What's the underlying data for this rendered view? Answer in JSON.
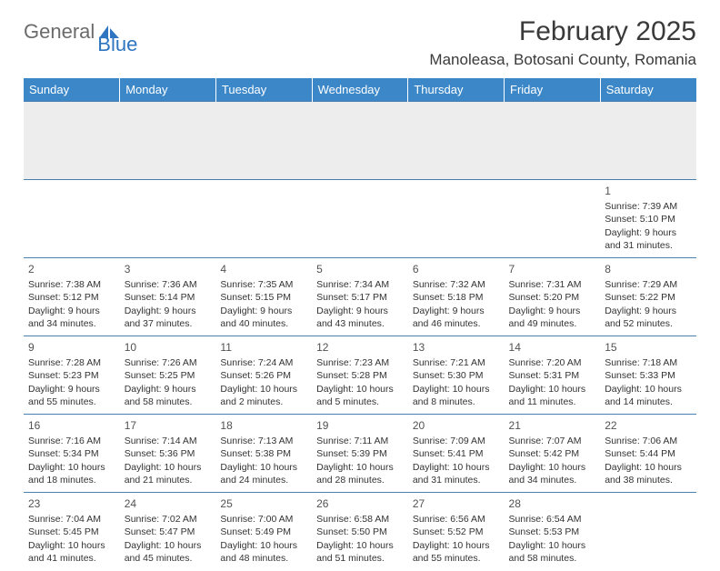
{
  "logo": {
    "part1": "General",
    "part2": "Blue"
  },
  "title": "February 2025",
  "location": "Manoleasa, Botosani County, Romania",
  "style": {
    "header_bg": "#3b87c8",
    "header_text": "#ffffff",
    "border_color": "#4b7fb0",
    "blank_row_bg": "#ededed",
    "page_bg": "#ffffff",
    "title_fontsize": 30,
    "location_fontsize": 17,
    "dayname_fontsize": 13,
    "daynum_fontsize": 12,
    "cell_fontsize": 10.5,
    "logo_gray": "#6b6b6b",
    "logo_blue": "#2f75c1"
  },
  "day_names": [
    "Sunday",
    "Monday",
    "Tuesday",
    "Wednesday",
    "Thursday",
    "Friday",
    "Saturday"
  ],
  "weeks": [
    [
      null,
      null,
      null,
      null,
      null,
      null,
      {
        "n": "1",
        "sr": "7:39 AM",
        "ss": "5:10 PM",
        "dl": "9 hours and 31 minutes."
      }
    ],
    [
      {
        "n": "2",
        "sr": "7:38 AM",
        "ss": "5:12 PM",
        "dl": "9 hours and 34 minutes."
      },
      {
        "n": "3",
        "sr": "7:36 AM",
        "ss": "5:14 PM",
        "dl": "9 hours and 37 minutes."
      },
      {
        "n": "4",
        "sr": "7:35 AM",
        "ss": "5:15 PM",
        "dl": "9 hours and 40 minutes."
      },
      {
        "n": "5",
        "sr": "7:34 AM",
        "ss": "5:17 PM",
        "dl": "9 hours and 43 minutes."
      },
      {
        "n": "6",
        "sr": "7:32 AM",
        "ss": "5:18 PM",
        "dl": "9 hours and 46 minutes."
      },
      {
        "n": "7",
        "sr": "7:31 AM",
        "ss": "5:20 PM",
        "dl": "9 hours and 49 minutes."
      },
      {
        "n": "8",
        "sr": "7:29 AM",
        "ss": "5:22 PM",
        "dl": "9 hours and 52 minutes."
      }
    ],
    [
      {
        "n": "9",
        "sr": "7:28 AM",
        "ss": "5:23 PM",
        "dl": "9 hours and 55 minutes."
      },
      {
        "n": "10",
        "sr": "7:26 AM",
        "ss": "5:25 PM",
        "dl": "9 hours and 58 minutes."
      },
      {
        "n": "11",
        "sr": "7:24 AM",
        "ss": "5:26 PM",
        "dl": "10 hours and 2 minutes."
      },
      {
        "n": "12",
        "sr": "7:23 AM",
        "ss": "5:28 PM",
        "dl": "10 hours and 5 minutes."
      },
      {
        "n": "13",
        "sr": "7:21 AM",
        "ss": "5:30 PM",
        "dl": "10 hours and 8 minutes."
      },
      {
        "n": "14",
        "sr": "7:20 AM",
        "ss": "5:31 PM",
        "dl": "10 hours and 11 minutes."
      },
      {
        "n": "15",
        "sr": "7:18 AM",
        "ss": "5:33 PM",
        "dl": "10 hours and 14 minutes."
      }
    ],
    [
      {
        "n": "16",
        "sr": "7:16 AM",
        "ss": "5:34 PM",
        "dl": "10 hours and 18 minutes."
      },
      {
        "n": "17",
        "sr": "7:14 AM",
        "ss": "5:36 PM",
        "dl": "10 hours and 21 minutes."
      },
      {
        "n": "18",
        "sr": "7:13 AM",
        "ss": "5:38 PM",
        "dl": "10 hours and 24 minutes."
      },
      {
        "n": "19",
        "sr": "7:11 AM",
        "ss": "5:39 PM",
        "dl": "10 hours and 28 minutes."
      },
      {
        "n": "20",
        "sr": "7:09 AM",
        "ss": "5:41 PM",
        "dl": "10 hours and 31 minutes."
      },
      {
        "n": "21",
        "sr": "7:07 AM",
        "ss": "5:42 PM",
        "dl": "10 hours and 34 minutes."
      },
      {
        "n": "22",
        "sr": "7:06 AM",
        "ss": "5:44 PM",
        "dl": "10 hours and 38 minutes."
      }
    ],
    [
      {
        "n": "23",
        "sr": "7:04 AM",
        "ss": "5:45 PM",
        "dl": "10 hours and 41 minutes."
      },
      {
        "n": "24",
        "sr": "7:02 AM",
        "ss": "5:47 PM",
        "dl": "10 hours and 45 minutes."
      },
      {
        "n": "25",
        "sr": "7:00 AM",
        "ss": "5:49 PM",
        "dl": "10 hours and 48 minutes."
      },
      {
        "n": "26",
        "sr": "6:58 AM",
        "ss": "5:50 PM",
        "dl": "10 hours and 51 minutes."
      },
      {
        "n": "27",
        "sr": "6:56 AM",
        "ss": "5:52 PM",
        "dl": "10 hours and 55 minutes."
      },
      {
        "n": "28",
        "sr": "6:54 AM",
        "ss": "5:53 PM",
        "dl": "10 hours and 58 minutes."
      },
      null
    ]
  ],
  "labels": {
    "sunrise": "Sunrise: ",
    "sunset": "Sunset: ",
    "daylight": "Daylight: "
  }
}
